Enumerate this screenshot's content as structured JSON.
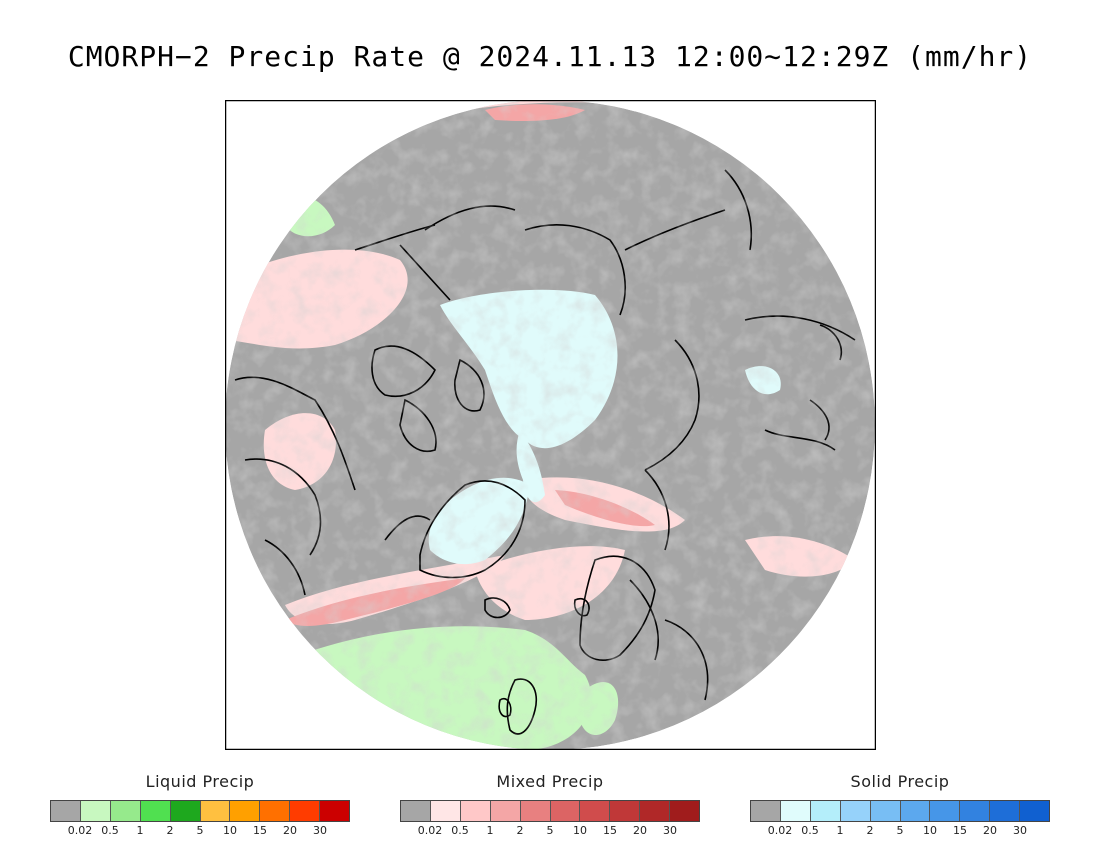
{
  "title": "CMORPH−2 Precip Rate @ 2024.11.13 12:00∼12:29Z (mm/hr)",
  "map": {
    "projection": "north polar stereographic",
    "colors": {
      "no_precip": "#a6a6a6",
      "mixed_light": "#ffdcdc",
      "mixed_moderate": "#f4a6a6",
      "mixed_heavy": "#e88080",
      "liquid_light": "#c8f8c0",
      "liquid_moderate": "#96ea8c",
      "solid_light": "#e0fbfb",
      "ocean_frame": "#ffffff",
      "coastline": "#000000"
    }
  },
  "legends": [
    {
      "id": "liquid",
      "title": "Liquid Precip",
      "colors": [
        "#a6a6a6",
        "#c8f8c0",
        "#96ea8c",
        "#50e050",
        "#1ea81e",
        "#ffc040",
        "#ffa000",
        "#ff7000",
        "#ff3c00",
        "#cc0000"
      ],
      "ticks": [
        "0.02",
        "0.5",
        "1",
        "2",
        "5",
        "10",
        "15",
        "20",
        "30"
      ]
    },
    {
      "id": "mixed",
      "title": "Mixed Precip",
      "colors": [
        "#a6a6a6",
        "#ffe6e6",
        "#ffc8c8",
        "#f4a6a6",
        "#e88080",
        "#dc6464",
        "#d04c4c",
        "#c03838",
        "#b02828",
        "#a01c1c"
      ],
      "ticks": [
        "0.02",
        "0.5",
        "1",
        "2",
        "5",
        "10",
        "15",
        "20",
        "30"
      ]
    },
    {
      "id": "solid",
      "title": "Solid Precip",
      "colors": [
        "#a6a6a6",
        "#e0fcfc",
        "#b4eefa",
        "#96d2fa",
        "#78bef4",
        "#5ca8ee",
        "#4696e8",
        "#3282e0",
        "#1e6ed8",
        "#1060d0"
      ],
      "ticks": [
        "0.02",
        "0.5",
        "1",
        "2",
        "5",
        "10",
        "15",
        "20",
        "30"
      ]
    }
  ]
}
